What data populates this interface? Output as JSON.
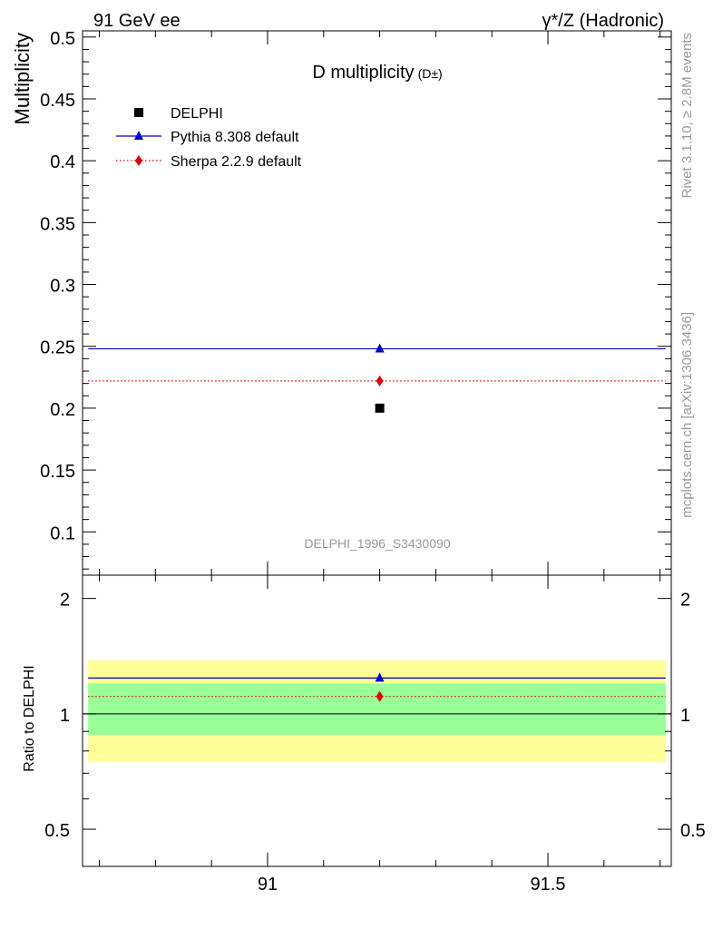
{
  "header": {
    "left": "91 GeV ee",
    "right": "γ*/Z (Hadronic)"
  },
  "side_labels": {
    "top": "Rivet 3.1.10, ≥ 2.8M events",
    "bottom": "mcplots.cern.ch [arXiv:1306.3436]"
  },
  "colors": {
    "data": "#000000",
    "pythia": "#0000cc",
    "sherpa": "#dd0000",
    "band_outer": "#ffff99",
    "band_inner": "#99ff99",
    "watermark": "#999999"
  },
  "chart_data": [
    {
      "type": "scatter",
      "title": "D multiplicity",
      "title_suffix": "(D±)",
      "ylabel": "Multiplicity",
      "analysis_label": "DELPHI_1996_S3430090",
      "ylim": [
        0.065,
        0.505
      ],
      "xlim": [
        90.67,
        91.72
      ],
      "yticks": [
        0.1,
        0.15,
        0.2,
        0.25,
        0.3,
        0.35,
        0.4,
        0.45,
        0.5
      ],
      "ytick_labels": [
        "0.1",
        "0.15",
        "0.2",
        "0.25",
        "0.3",
        "0.35",
        "0.4",
        "0.45",
        "0.5"
      ],
      "legend_placement": "top-left",
      "series": [
        {
          "name": "DELPHI",
          "marker": "square",
          "style": "points",
          "x": [
            91.2
          ],
          "y": [
            0.2
          ]
        },
        {
          "name": "Pythia 8.308 default",
          "marker": "triangle",
          "style": "solid",
          "x": [
            91.2
          ],
          "y": [
            0.248
          ],
          "x_range": [
            90.68,
            91.71
          ]
        },
        {
          "name": "Sherpa 2.2.9 default",
          "marker": "diamond",
          "style": "dotted",
          "x": [
            91.2
          ],
          "y": [
            0.222
          ],
          "x_range": [
            90.68,
            91.71
          ]
        }
      ]
    },
    {
      "type": "scatter",
      "ylabel": "Ratio to DELPHI",
      "ylim": [
        0.4,
        2.3
      ],
      "xlim": [
        90.67,
        91.72
      ],
      "yticks": [
        0.5,
        1,
        2
      ],
      "ytick_labels": [
        "0.5",
        "1",
        "2"
      ],
      "xticks": [
        91,
        91.5
      ],
      "xtick_labels": [
        "91",
        "91.5"
      ],
      "bands": [
        {
          "kind": "outer",
          "lo": 0.75,
          "hi": 1.38
        },
        {
          "kind": "inner",
          "lo": 0.88,
          "hi": 1.2
        }
      ],
      "reference_line": 1,
      "series": [
        {
          "name": "Pythia 8.308 default",
          "marker": "triangle",
          "style": "solid",
          "x": [
            91.2
          ],
          "y": [
            1.24
          ]
        },
        {
          "name": "Sherpa 2.2.9 default",
          "marker": "diamond",
          "style": "dotted",
          "x": [
            91.2
          ],
          "y": [
            1.11
          ]
        }
      ]
    }
  ]
}
